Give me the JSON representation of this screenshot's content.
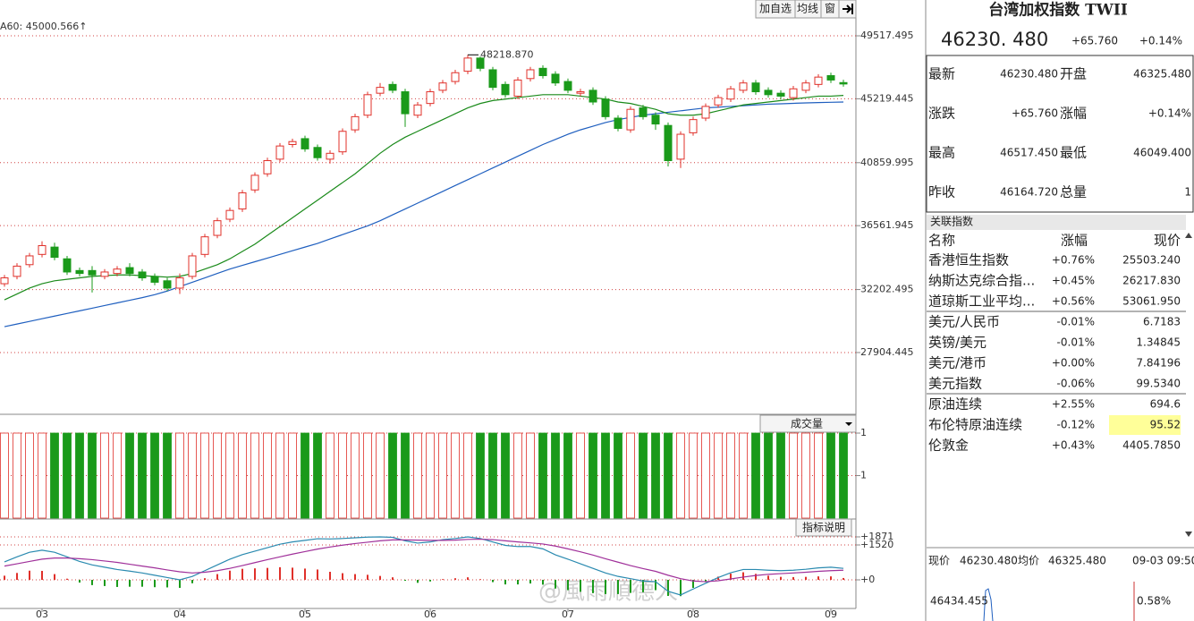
{
  "toolbar": {
    "buttons": [
      "加自选",
      "均线",
      "窗"
    ]
  },
  "watermark": "@風雨順德人",
  "chart_data": [
    {
      "type": "candlestick",
      "label": "A60: 45000.566↑",
      "annotation": "48218.870",
      "categories": [
        null,
        null,
        null,
        "03",
        null,
        null,
        null,
        null,
        null,
        null,
        null,
        null,
        null,
        null,
        "04",
        null,
        null,
        null,
        null,
        null,
        null,
        null,
        null,
        null,
        "05",
        null,
        null,
        null,
        null,
        null,
        null,
        null,
        null,
        null,
        "06",
        null,
        null,
        null,
        null,
        null,
        null,
        null,
        null,
        null,
        null,
        "07",
        null,
        null,
        null,
        null,
        null,
        null,
        null,
        null,
        null,
        "08",
        null,
        null,
        null,
        null,
        null,
        null,
        null,
        null,
        null,
        null,
        "09",
        null
      ],
      "open": [
        32600,
        33100,
        33900,
        34600,
        35100,
        34300,
        33500,
        33500,
        33100,
        33300,
        33700,
        33400,
        33100,
        32800,
        32300,
        33100,
        34600,
        35900,
        37000,
        37700,
        39000,
        40100,
        41100,
        42100,
        42500,
        41900,
        41100,
        41600,
        43100,
        44100,
        45600,
        46200,
        45700,
        44100,
        44900,
        45800,
        46400,
        47100,
        48000,
        47200,
        46200,
        45400,
        46600,
        47300,
        46900,
        46400,
        45600,
        45800,
        45200,
        43900,
        43100,
        44600,
        44100,
        43400,
        41100,
        42900,
        43900,
        44800,
        45200,
        45800,
        46300,
        45800,
        45600,
        45300,
        45800,
        46200,
        46800,
        46325.48
      ],
      "high": [
        33200,
        34000,
        34700,
        35500,
        35400,
        34500,
        33700,
        33800,
        33600,
        33800,
        34000,
        33600,
        33300,
        33000,
        33300,
        34700,
        36000,
        37100,
        37800,
        39000,
        40200,
        41200,
        42200,
        42500,
        42700,
        42100,
        41700,
        43200,
        44200,
        45700,
        46300,
        46400,
        45900,
        45000,
        45900,
        46500,
        47200,
        48218.87,
        48100,
        47400,
        46400,
        46700,
        47400,
        47500,
        47100,
        46600,
        45900,
        46000,
        45400,
        44100,
        44700,
        44800,
        44300,
        43600,
        43000,
        44000,
        44900,
        45500,
        46100,
        46500,
        46500,
        46000,
        45800,
        46100,
        46500,
        46900,
        47000,
        46517.45
      ],
      "low": [
        32400,
        32900,
        33700,
        34400,
        34200,
        33200,
        33100,
        32000,
        32900,
        33100,
        33100,
        32800,
        32500,
        32100,
        31900,
        32900,
        34400,
        35700,
        36800,
        37500,
        38800,
        39900,
        40900,
        41900,
        41600,
        41000,
        40800,
        41400,
        42900,
        43900,
        45400,
        45600,
        43300,
        43900,
        44700,
        45600,
        46200,
        46900,
        47100,
        45800,
        45300,
        45200,
        46400,
        46600,
        46100,
        45600,
        45400,
        44800,
        43800,
        43000,
        42900,
        43800,
        43100,
        40600,
        40500,
        42700,
        43700,
        44600,
        45000,
        45600,
        45500,
        45300,
        45200,
        45100,
        45600,
        46000,
        46300,
        46049.4
      ],
      "close": [
        33000,
        33800,
        34500,
        35200,
        34400,
        33400,
        33300,
        33200,
        33400,
        33600,
        33300,
        33000,
        32700,
        32300,
        33000,
        34500,
        35800,
        36900,
        37600,
        38800,
        40000,
        41000,
        42000,
        42300,
        41800,
        41200,
        41500,
        43000,
        44000,
        45500,
        46000,
        45800,
        44200,
        44800,
        45700,
        46300,
        47000,
        48000,
        47300,
        46000,
        45500,
        46500,
        47200,
        46800,
        46300,
        45800,
        45700,
        45000,
        44000,
        43200,
        44500,
        44000,
        43500,
        41000,
        42800,
        43800,
        44700,
        45300,
        45900,
        46300,
        45700,
        45500,
        45400,
        45900,
        46300,
        46700,
        46500,
        46230.48
      ],
      "lines": [
        {
          "color": "#1f5fbf",
          "values": [
            29670,
            29850,
            30030,
            30210,
            30390,
            30570,
            30750,
            30930,
            31110,
            31290,
            31470,
            31650,
            31850,
            32100,
            32400,
            32700,
            33000,
            33300,
            33600,
            33850,
            34100,
            34350,
            34600,
            34850,
            35100,
            35350,
            35650,
            35950,
            36250,
            36550,
            36900,
            37300,
            37700,
            38100,
            38500,
            38900,
            39300,
            39700,
            40100,
            40500,
            40900,
            41300,
            41700,
            42100,
            42450,
            42800,
            43100,
            43350,
            43600,
            43800,
            43950,
            44100,
            44200,
            44300,
            44400,
            44500,
            44600,
            44650,
            44700,
            44750,
            44800,
            44850,
            44880,
            44910,
            44940,
            44960,
            44980,
            45000.566
          ]
        },
        {
          "color": "#1a8a1a",
          "values": [
            31500,
            31900,
            32300,
            32600,
            32800,
            32900,
            33000,
            33100,
            33150,
            33200,
            33200,
            33150,
            33100,
            33050,
            33100,
            33300,
            33600,
            33900,
            34300,
            34800,
            35300,
            35900,
            36500,
            37100,
            37700,
            38300,
            38900,
            39500,
            40100,
            40800,
            41500,
            42100,
            42600,
            43000,
            43400,
            43800,
            44200,
            44600,
            44900,
            45100,
            45200,
            45300,
            45400,
            45500,
            45500,
            45500,
            45400,
            45300,
            45200,
            45000,
            44900,
            44700,
            44500,
            44200,
            44100,
            44100,
            44200,
            44400,
            44600,
            44800,
            44900,
            45000,
            45100,
            45200,
            45300,
            45400,
            45400,
            45450
          ]
        }
      ],
      "ylim": [
        23750,
        50740
      ],
      "yticks": [
        49517.495,
        45219.445,
        40859.995,
        36561.945,
        32202.495,
        27904.445
      ]
    },
    {
      "type": "bar",
      "title": "成交量",
      "values": [
        1,
        1,
        1,
        1,
        1,
        1,
        1,
        1,
        1,
        1,
        1,
        1,
        1,
        1,
        1,
        1,
        1,
        1,
        1,
        1,
        1,
        1,
        1,
        1,
        1,
        1,
        1,
        1,
        1,
        1,
        1,
        1,
        1,
        1,
        1,
        1,
        1,
        1,
        1,
        1,
        1,
        1,
        1,
        1,
        1,
        1,
        1,
        1,
        1,
        1,
        1,
        1,
        1,
        1,
        1,
        1,
        1,
        1,
        1,
        1,
        1,
        1,
        1,
        1,
        1,
        1,
        1,
        1
      ],
      "ylim": [
        0,
        1
      ],
      "yticks": [
        1,
        {
          "value": 0.5,
          "label": "1"
        }
      ]
    },
    {
      "type": "macd",
      "button": "指标说明",
      "dif": [
        780,
        1000,
        1200,
        1290,
        1200,
        1000,
        800,
        650,
        550,
        450,
        380,
        300,
        200,
        100,
        0,
        150,
        400,
        650,
        900,
        1100,
        1250,
        1400,
        1550,
        1650,
        1720,
        1790,
        1780,
        1800,
        1830,
        1860,
        1870,
        1850,
        1700,
        1600,
        1650,
        1750,
        1800,
        1870,
        1800,
        1650,
        1500,
        1450,
        1450,
        1350,
        1090,
        900,
        700,
        500,
        300,
        150,
        50,
        -50,
        -80,
        -500,
        -660,
        -400,
        -150,
        100,
        310,
        450,
        450,
        420,
        400,
        420,
        460,
        520,
        550,
        500
      ],
      "dea": [
        600,
        700,
        800,
        900,
        950,
        950,
        920,
        880,
        820,
        760,
        680,
        600,
        520,
        430,
        350,
        300,
        330,
        400,
        500,
        620,
        750,
        880,
        1000,
        1120,
        1230,
        1340,
        1430,
        1510,
        1580,
        1640,
        1700,
        1740,
        1740,
        1730,
        1720,
        1720,
        1730,
        1760,
        1770,
        1750,
        1700,
        1650,
        1610,
        1560,
        1470,
        1350,
        1220,
        1080,
        920,
        770,
        620,
        490,
        370,
        200,
        50,
        -50,
        -80,
        -40,
        40,
        120,
        190,
        240,
        270,
        300,
        330,
        370,
        400,
        420
      ],
      "values": [
        180,
        300,
        400,
        390,
        250,
        50,
        -120,
        -230,
        -270,
        -310,
        -300,
        -300,
        -320,
        -330,
        -350,
        -150,
        70,
        250,
        400,
        480,
        500,
        520,
        550,
        530,
        490,
        450,
        350,
        290,
        250,
        220,
        170,
        110,
        -40,
        -130,
        -70,
        30,
        70,
        110,
        30,
        -100,
        -200,
        -200,
        -160,
        -210,
        -380,
        -450,
        -520,
        -580,
        -620,
        -620,
        -570,
        -540,
        -450,
        -700,
        -710,
        -350,
        -70,
        140,
        270,
        330,
        260,
        180,
        130,
        120,
        130,
        150,
        150,
        80
      ],
      "ylim": [
        -1247,
        2260
      ],
      "yticks": [
        {
          "value": 1871,
          "label": "+1871"
        },
        {
          "value": 1520,
          "label": "+1520"
        },
        {
          "value": 0,
          "label": "+0"
        }
      ]
    }
  ],
  "panel": {
    "title": "台湾加权指数 TWII",
    "price": "46230. 480",
    "change": "+65.760",
    "change_pct": "+0.14%",
    "quote": [
      [
        "最新",
        "46230.480",
        "开盘",
        "46325.480"
      ],
      [
        "涨跌",
        "+65.760",
        "涨幅",
        "+0.14%"
      ],
      [
        "最高",
        "46517.450",
        "最低",
        "46049.400"
      ],
      [
        "昨收",
        "46164.720",
        "总量",
        "1"
      ]
    ],
    "related_title": "关联指数",
    "related_header": [
      "名称",
      "涨幅",
      "现价"
    ],
    "related": [
      [
        "香港恒生指数",
        "+0.76%",
        "25503.240"
      ],
      [
        "纳斯达克综合指...",
        "+0.45%",
        "26217.830"
      ],
      [
        "道琼斯工业平均...",
        "+0.56%",
        "53061.950"
      ],
      [
        "美元/人民币",
        "-0.01%",
        "6.7183"
      ],
      [
        "英镑/美元",
        "-0.01%",
        "1.34845"
      ],
      [
        "美元/港币",
        "+0.00%",
        "7.84196"
      ],
      [
        "美元指数",
        "-0.06%",
        "99.5340"
      ],
      [
        "原油连续",
        "+2.55%",
        "694.6"
      ],
      [
        "布伦特原油连续",
        "-0.12%",
        "95.52"
      ],
      [
        "伦敦金",
        "+0.43%",
        "4405.7850"
      ]
    ],
    "minute": {
      "items": [
        "现价",
        "46230.480",
        "均价",
        "46325.480",
        "09-03 09:50"
      ],
      "top": "46434.455",
      "top_pct": "0.58%"
    }
  }
}
